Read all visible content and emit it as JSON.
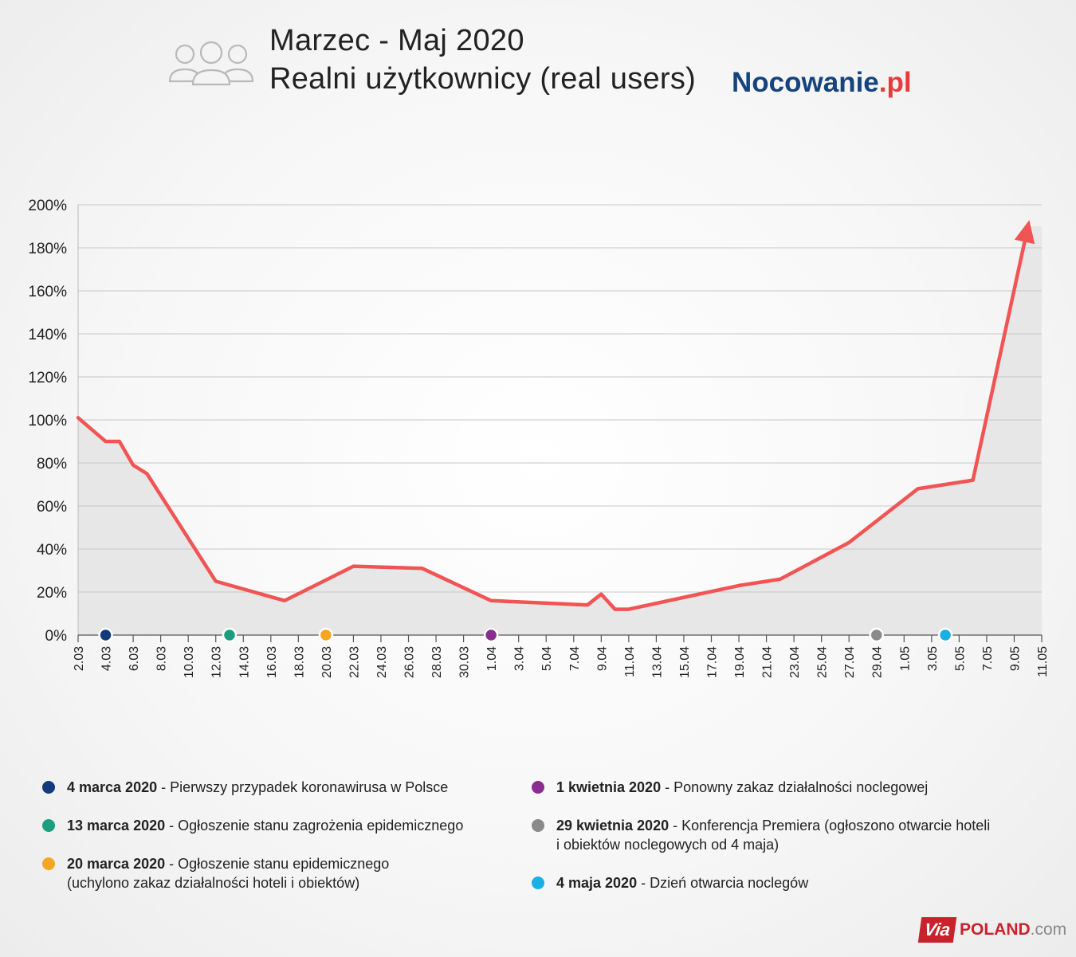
{
  "header": {
    "icon": "users-group-icon",
    "title_line1": "Marzec - Maj 2020",
    "title_line2": "Realni użytkownicy (real users)",
    "brand_main": "Nocowanie",
    "brand_tld": ".pl"
  },
  "chart_data": {
    "type": "line",
    "title": "Realni użytkownicy (real users)",
    "xlabel": "",
    "ylabel": "",
    "ylim": [
      0,
      200
    ],
    "y_ticks": [
      0,
      20,
      40,
      60,
      80,
      100,
      120,
      140,
      160,
      180,
      200
    ],
    "y_tick_labels": [
      "0%",
      "20%",
      "40%",
      "60%",
      "80%",
      "100%",
      "120%",
      "140%",
      "160%",
      "180%",
      "200%"
    ],
    "x_tick_labels": [
      "2.03",
      "4.03",
      "6.03",
      "8.03",
      "10.03",
      "12.03",
      "14.03",
      "16.03",
      "18.03",
      "20.03",
      "22.03",
      "24.03",
      "26.03",
      "28.03",
      "30.03",
      "1.04",
      "3.04",
      "5.04",
      "7.04",
      "9.04",
      "11.04",
      "13.04",
      "15.04",
      "17.04",
      "19.04",
      "21.04",
      "23.04",
      "25.04",
      "27.04",
      "29.04",
      "1.05",
      "3.05",
      "5.05",
      "7.05",
      "9.05",
      "11.05"
    ],
    "grid": true,
    "line_color": "#f05454",
    "area_color": "#e7e7e7",
    "series": [
      {
        "name": "",
        "points": [
          {
            "x": "2.03",
            "y": 101
          },
          {
            "x": "4.03",
            "y": 90
          },
          {
            "x": "5.03",
            "y": 90
          },
          {
            "x": "6.03",
            "y": 79
          },
          {
            "x": "7.03",
            "y": 75
          },
          {
            "x": "12.03",
            "y": 25
          },
          {
            "x": "17.03",
            "y": 16
          },
          {
            "x": "22.03",
            "y": 32
          },
          {
            "x": "27.03",
            "y": 31
          },
          {
            "x": "1.04",
            "y": 16
          },
          {
            "x": "8.04",
            "y": 14
          },
          {
            "x": "9.04",
            "y": 19
          },
          {
            "x": "10.04",
            "y": 12
          },
          {
            "x": "11.04",
            "y": 12
          },
          {
            "x": "19.04",
            "y": 23
          },
          {
            "x": "22.04",
            "y": 26
          },
          {
            "x": "27.04",
            "y": 43
          },
          {
            "x": "2.05",
            "y": 68
          },
          {
            "x": "6.05",
            "y": 72
          },
          {
            "x": "10.05",
            "y": 190
          }
        ]
      }
    ],
    "events": [
      {
        "x": "4.03",
        "color": "#133b7c"
      },
      {
        "x": "13.03",
        "color": "#1a9e7e"
      },
      {
        "x": "20.03",
        "color": "#f5a623"
      },
      {
        "x": "1.04",
        "color": "#8b2c91"
      },
      {
        "x": "29.04",
        "color": "#8a8a8a"
      },
      {
        "x": "4.05",
        "color": "#19b1e3"
      }
    ]
  },
  "legend": [
    {
      "date": "4 marca 2020",
      "text": " - Pierwszy przypadek koronawirusa w Polsce",
      "line2": "",
      "color": "#133b7c"
    },
    {
      "date": "13 marca 2020",
      "text": " - Ogłoszenie stanu zagrożenia epidemicznego",
      "line2": "",
      "color": "#1a9e7e"
    },
    {
      "date": "20 marca 2020",
      "text": " - Ogłoszenie stanu epidemicznego",
      "line2": "(uchylono zakaz działalności hoteli i obiektów)",
      "color": "#f5a623"
    },
    {
      "date": "1 kwietnia 2020",
      "text": " - Ponowny zakaz działalności noclegowej",
      "line2": "",
      "color": "#8b2c91"
    },
    {
      "date": "29 kwietnia 2020",
      "text": " - Konferencja Premiera (ogłoszono otwarcie hoteli",
      "line2": "i obiektów noclegowych od 4 maja)",
      "color": "#8a8a8a"
    },
    {
      "date": "4 maja 2020",
      "text": " - Dzień otwarcia noclegów",
      "line2": "",
      "color": "#19b1e3"
    }
  ],
  "footer": {
    "via": "Via",
    "site_name": "POLAND",
    "site_tld": ".com"
  }
}
